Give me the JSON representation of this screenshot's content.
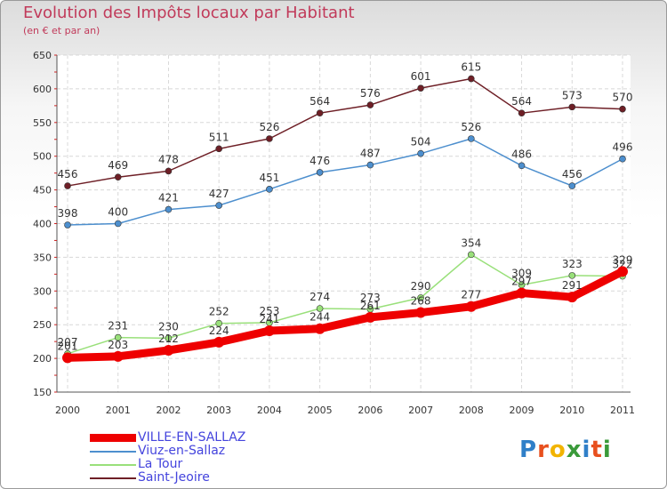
{
  "title": "Evolution des Impôts locaux par Habitant",
  "subtitle": "(en € et par an)",
  "logo": {
    "text": "Proxiti",
    "colors": [
      "#2f7fc8",
      "#e8501e",
      "#f2b400",
      "#3a9a3a",
      "#2f7fc8",
      "#e8501e",
      "#3a9a3a"
    ]
  },
  "chart_data": {
    "type": "line",
    "x": [
      "2000",
      "2001",
      "2002",
      "2003",
      "2004",
      "2005",
      "2006",
      "2007",
      "2008",
      "2009",
      "2010",
      "2011"
    ],
    "yticks": [
      150,
      200,
      250,
      300,
      350,
      400,
      450,
      500,
      550,
      600,
      650
    ],
    "ylim": [
      150,
      650
    ],
    "grid": true,
    "legend_placement": "bottom-left",
    "series": [
      {
        "name": "Saint-Jeoire",
        "color": "#6e1f26",
        "values": [
          456,
          469,
          478,
          511,
          526,
          564,
          576,
          601,
          615,
          564,
          573,
          570
        ]
      },
      {
        "name": "Viuz-en-Sallaz",
        "color": "#4d8fce",
        "values": [
          398,
          400,
          421,
          427,
          451,
          476,
          487,
          504,
          526,
          486,
          456,
          496
        ]
      },
      {
        "name": "La Tour",
        "color": "#99e07a",
        "values": [
          207,
          231,
          230,
          252,
          253,
          274,
          273,
          290,
          354,
          309,
          323,
          322
        ]
      },
      {
        "name": "VILLE-EN-SALLAZ",
        "color": "#ee0000",
        "values": [
          201,
          203,
          212,
          224,
          241,
          244,
          261,
          268,
          277,
          297,
          291,
          329
        ]
      }
    ]
  },
  "legend": [
    {
      "label": "VILLE-EN-SALLAZ",
      "color": "#ee0000"
    },
    {
      "label": "Viuz-en-Sallaz",
      "color": "#4d8fce"
    },
    {
      "label": "La Tour",
      "color": "#99e07a"
    },
    {
      "label": "Saint-Jeoire",
      "color": "#6e1f26"
    }
  ]
}
